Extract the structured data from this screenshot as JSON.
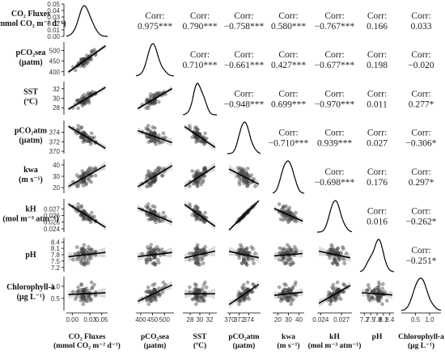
{
  "chart_data": {
    "type": "scatter",
    "grid": false,
    "variables": [
      {
        "id": "co2flux",
        "row_label": [
          "CO₂ Fluxes",
          "(mmol CO₂ m⁻² d⁻¹)"
        ],
        "col_label": [
          "CO₂ Fluxes",
          "(mmol CO₂ m⁻² d⁻¹)"
        ],
        "range": [
          -0.01,
          0.06
        ]
      },
      {
        "id": "pco2sea",
        "row_label": [
          "pCO₂sea",
          "(µatm)"
        ],
        "col_label": [
          "pCO₂sea",
          "(µatm)"
        ],
        "range": [
          380,
          540
        ]
      },
      {
        "id": "sst",
        "row_label": [
          "SST",
          "(ºC)"
        ],
        "col_label": [
          "SST",
          "(ºC)"
        ],
        "range": [
          26.5,
          33.5
        ]
      },
      {
        "id": "pco2atm",
        "row_label": [
          "pCO₂atm",
          "(µatm)"
        ],
        "col_label": [
          "pCO₂atm",
          "(µatm)"
        ],
        "range": [
          369.5,
          376.5
        ]
      },
      {
        "id": "kwa",
        "row_label": [
          "kwa",
          "(m s⁻¹)"
        ],
        "col_label": [
          "kwa",
          "(m s⁻¹)"
        ],
        "range": [
          15,
          45
        ]
      },
      {
        "id": "kh",
        "row_label": [
          "kH",
          "(mol m⁻³ atm⁻¹)"
        ],
        "col_label": [
          "kH",
          "(mol m⁻³ atm⁻¹)"
        ],
        "range": [
          0.0235,
          0.0285
        ]
      },
      {
        "id": "ph",
        "row_label": [
          "pH",
          ""
        ],
        "col_label": [
          "pH",
          ""
        ],
        "range": [
          7.0,
          8.6
        ]
      },
      {
        "id": "chla",
        "row_label": [
          "Chlorophyll-a",
          "(µg L⁻¹)"
        ],
        "col_label": [
          "Chlorophyll-a",
          "(µg L⁻¹)"
        ],
        "range": [
          0,
          1.4
        ]
      }
    ],
    "row_axis_ticks": [
      [
        "0.05",
        "0.04",
        "0.03",
        "0.02",
        "0.01",
        "0.00"
      ],
      [
        "500",
        "450",
        "400"
      ],
      [
        "32",
        "30",
        "28"
      ],
      [
        "374",
        "372",
        "370"
      ],
      [
        "40",
        "30",
        "20"
      ],
      [
        "0.027",
        "0.026",
        "0.025",
        "0.024"
      ],
      [
        "8.4",
        "8.1",
        "7.8",
        "7.5",
        "7.2"
      ],
      [
        "1.0",
        "0.5"
      ]
    ],
    "row_axis_tick_values": [
      [
        0.05,
        0.04,
        0.03,
        0.02,
        0.01,
        0.0
      ],
      [
        500,
        450,
        400
      ],
      [
        32,
        30,
        28
      ],
      [
        374,
        372,
        370
      ],
      [
        40,
        30,
        20
      ],
      [
        0.027,
        0.026,
        0.025,
        0.024
      ],
      [
        8.4,
        8.1,
        7.8,
        7.5,
        7.2
      ],
      [
        1.0,
        0.5
      ]
    ],
    "col_axis_ticks": [
      [
        "0.00",
        "0.03",
        "0.05"
      ],
      [
        "400",
        "450",
        "500"
      ],
      [
        "28",
        "30",
        "32"
      ],
      [
        "370",
        "372",
        "374"
      ],
      [
        "20",
        "30",
        "40"
      ],
      [
        "0.024",
        "0.027"
      ],
      [
        "7.2",
        "7.5",
        "7.8",
        "8.1",
        "8.4"
      ],
      [
        "0.5",
        "1.0"
      ]
    ],
    "col_axis_tick_values": [
      [
        0.0,
        0.03,
        0.05
      ],
      [
        400,
        450,
        500
      ],
      [
        28,
        30,
        32
      ],
      [
        370,
        372,
        374
      ],
      [
        20,
        30,
        40
      ],
      [
        0.024,
        0.027
      ],
      [
        7.2,
        7.5,
        7.8,
        8.1,
        8.4
      ],
      [
        0.5,
        1.0
      ]
    ],
    "correlations": [
      {
        "row": 0,
        "col": 1,
        "label": "Corr:",
        "value": "0.975***"
      },
      {
        "row": 0,
        "col": 2,
        "label": "Corr:",
        "value": "0.790***"
      },
      {
        "row": 0,
        "col": 3,
        "label": "Corr:",
        "value": "−0.758***"
      },
      {
        "row": 0,
        "col": 4,
        "label": "Corr:",
        "value": "0.580***"
      },
      {
        "row": 0,
        "col": 5,
        "label": "Corr:",
        "value": "−0.767***"
      },
      {
        "row": 0,
        "col": 6,
        "label": "Corr:",
        "value": "0.166"
      },
      {
        "row": 0,
        "col": 7,
        "label": "Corr:",
        "value": "0.033"
      },
      {
        "row": 1,
        "col": 2,
        "label": "Corr:",
        "value": "0.710***"
      },
      {
        "row": 1,
        "col": 3,
        "label": "Corr:",
        "value": "−0.661***"
      },
      {
        "row": 1,
        "col": 4,
        "label": "Corr:",
        "value": "0.427***"
      },
      {
        "row": 1,
        "col": 5,
        "label": "Corr:",
        "value": "−0.677***"
      },
      {
        "row": 1,
        "col": 6,
        "label": "Corr:",
        "value": "0.198"
      },
      {
        "row": 1,
        "col": 7,
        "label": "Corr:",
        "value": "−0.020"
      },
      {
        "row": 2,
        "col": 3,
        "label": "Corr:",
        "value": "−0.948***"
      },
      {
        "row": 2,
        "col": 4,
        "label": "Corr:",
        "value": "0.699***"
      },
      {
        "row": 2,
        "col": 5,
        "label": "Corr:",
        "value": "−0.970***"
      },
      {
        "row": 2,
        "col": 6,
        "label": "Corr:",
        "value": "0.011"
      },
      {
        "row": 2,
        "col": 7,
        "label": "Corr:",
        "value": "0.277*"
      },
      {
        "row": 3,
        "col": 4,
        "label": "Corr:",
        "value": "−0.710***"
      },
      {
        "row": 3,
        "col": 5,
        "label": "Corr:",
        "value": "0.939***"
      },
      {
        "row": 3,
        "col": 6,
        "label": "Corr:",
        "value": "0.027"
      },
      {
        "row": 3,
        "col": 7,
        "label": "Corr:",
        "value": "−0.306*"
      },
      {
        "row": 4,
        "col": 5,
        "label": "Corr:",
        "value": "−0.698***"
      },
      {
        "row": 4,
        "col": 6,
        "label": "Corr:",
        "value": "0.176"
      },
      {
        "row": 4,
        "col": 7,
        "label": "Corr:",
        "value": "0.297*"
      },
      {
        "row": 5,
        "col": 6,
        "label": "Corr:",
        "value": "0.016"
      },
      {
        "row": 5,
        "col": 7,
        "label": "Corr:",
        "value": "−0.262*"
      },
      {
        "row": 6,
        "col": 7,
        "label": "Corr:",
        "value": "−0.251*"
      }
    ],
    "colors": {
      "points": "#4a4a4a",
      "fit_line": "#000000",
      "ci_band": "#bdbdbd",
      "density": "#000000",
      "axis": "#000000"
    }
  }
}
